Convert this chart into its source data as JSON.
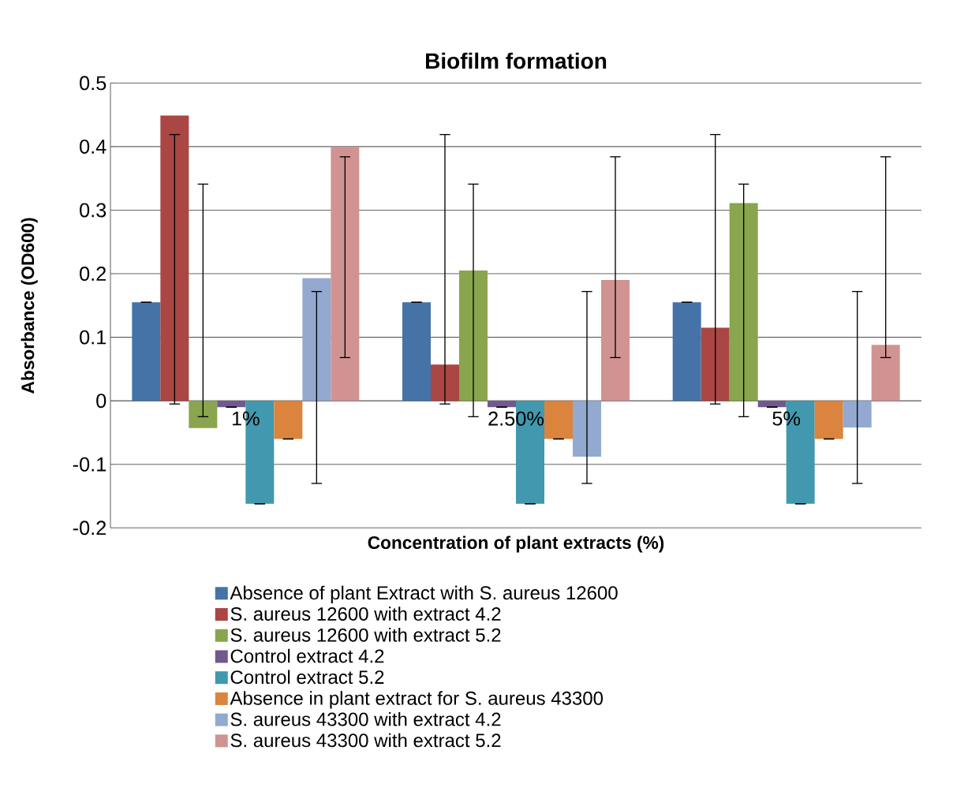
{
  "chart_data": {
    "type": "bar",
    "title": "Biofilm formation",
    "xlabel": "Concentration of plant extracts (%)",
    "ylabel": "Absorbance (OD600)",
    "categories": [
      "1%",
      "2.50%",
      "5%"
    ],
    "ylim": [
      -0.2,
      0.5
    ],
    "yticks": [
      -0.2,
      -0.1,
      0,
      0.1,
      0.2,
      0.3,
      0.4,
      0.5
    ],
    "grid": "y",
    "legend": "bottom",
    "series": [
      {
        "name": "Absence of plant Extract with S. aureus 12600",
        "color": "#4572a7",
        "values": [
          0.155,
          0.155,
          0.155
        ],
        "errors": [
          0,
          0,
          0
        ]
      },
      {
        "name": "S. aureus 12600 with extract 4.2",
        "color": "#aa4643",
        "values": [
          0.449,
          0.057,
          0.115
        ],
        "errors": [
          [
            -0.005,
            0.419
          ],
          [
            -0.005,
            0.419
          ],
          [
            -0.005,
            0.419
          ]
        ]
      },
      {
        "name": "S. aureus 12600 with extract 5.2",
        "color": "#89a54e",
        "values": [
          -0.043,
          0.205,
          0.311
        ],
        "errors": [
          [
            -0.025,
            0.341
          ],
          [
            -0.025,
            0.341
          ],
          [
            -0.025,
            0.341
          ]
        ]
      },
      {
        "name": "Control extract 4.2",
        "color": "#71588f",
        "values": [
          -0.01,
          -0.01,
          -0.01
        ],
        "errors": [
          0,
          0,
          0
        ]
      },
      {
        "name": "Control extract 5.2",
        "color": "#4198af",
        "values": [
          -0.162,
          -0.162,
          -0.162
        ],
        "errors": [
          0,
          0,
          0
        ]
      },
      {
        "name": "Absence in plant extract for S. aureus 43300",
        "color": "#db843d",
        "values": [
          -0.06,
          -0.06,
          -0.06
        ],
        "errors": [
          0,
          0,
          0
        ]
      },
      {
        "name": "S. aureus 43300 with extract 4.2",
        "color": "#93a9cf",
        "values": [
          0.193,
          -0.088,
          -0.042
        ],
        "errors": [
          [
            -0.13,
            0.172
          ],
          [
            -0.13,
            0.172
          ],
          [
            -0.13,
            0.172
          ]
        ]
      },
      {
        "name": "S. aureus 43300 with extract 5.2",
        "color": "#d19392",
        "values": [
          0.4,
          0.19,
          0.088
        ],
        "errors": [
          [
            0.068,
            0.384
          ],
          [
            0.068,
            0.384
          ],
          [
            0.068,
            0.384
          ]
        ]
      }
    ]
  }
}
